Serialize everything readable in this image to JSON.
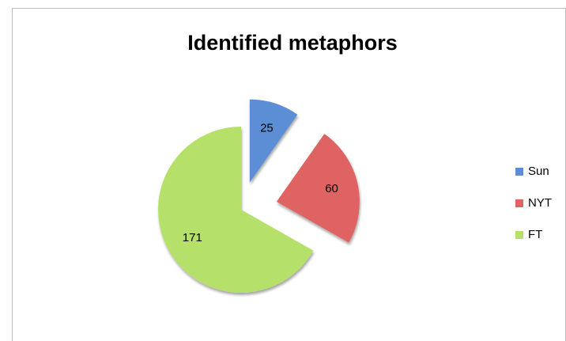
{
  "chart_data": {
    "type": "pie",
    "title": "Identified metaphors",
    "categories": [
      "Sun",
      "NYT",
      "FT"
    ],
    "values": [
      25,
      60,
      171
    ],
    "colors": [
      "#5b8ed6",
      "#e06464",
      "#b5e06a"
    ],
    "legend": "right"
  }
}
